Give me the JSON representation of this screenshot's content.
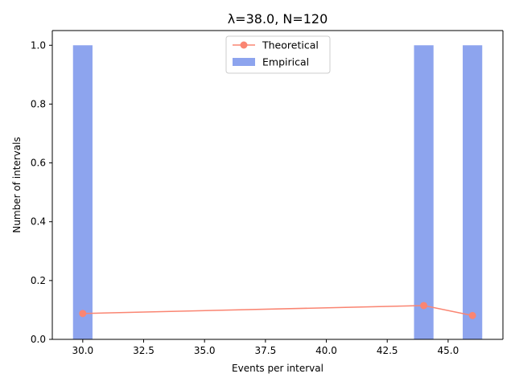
{
  "chart_data": {
    "type": "bar",
    "title": "λ=38.0, N=120",
    "xlabel": "Events per interval",
    "ylabel": "Number of intervals",
    "xlim": [
      28.75,
      47.25
    ],
    "ylim": [
      0,
      1.05
    ],
    "xticks": [
      30.0,
      32.5,
      35.0,
      37.5,
      40.0,
      42.5,
      45.0
    ],
    "xtick_labels": [
      "30.0",
      "32.5",
      "35.0",
      "37.5",
      "40.0",
      "42.5",
      "45.0"
    ],
    "yticks": [
      0.0,
      0.2,
      0.4,
      0.6,
      0.8,
      1.0
    ],
    "ytick_labels": [
      "0.0",
      "0.2",
      "0.4",
      "0.6",
      "0.8",
      "1.0"
    ],
    "grid": false,
    "legend_position": "top-center",
    "bar_width": 0.8,
    "series": [
      {
        "name": "Empirical",
        "kind": "bar",
        "color": "#8da4ee",
        "x": [
          30,
          44,
          46
        ],
        "values": [
          1.0,
          1.0,
          1.0
        ]
      },
      {
        "name": "Theoretical",
        "kind": "line",
        "color": "#fa8572",
        "x": [
          30,
          44,
          46
        ],
        "values": [
          0.088,
          0.115,
          0.081
        ]
      }
    ]
  }
}
